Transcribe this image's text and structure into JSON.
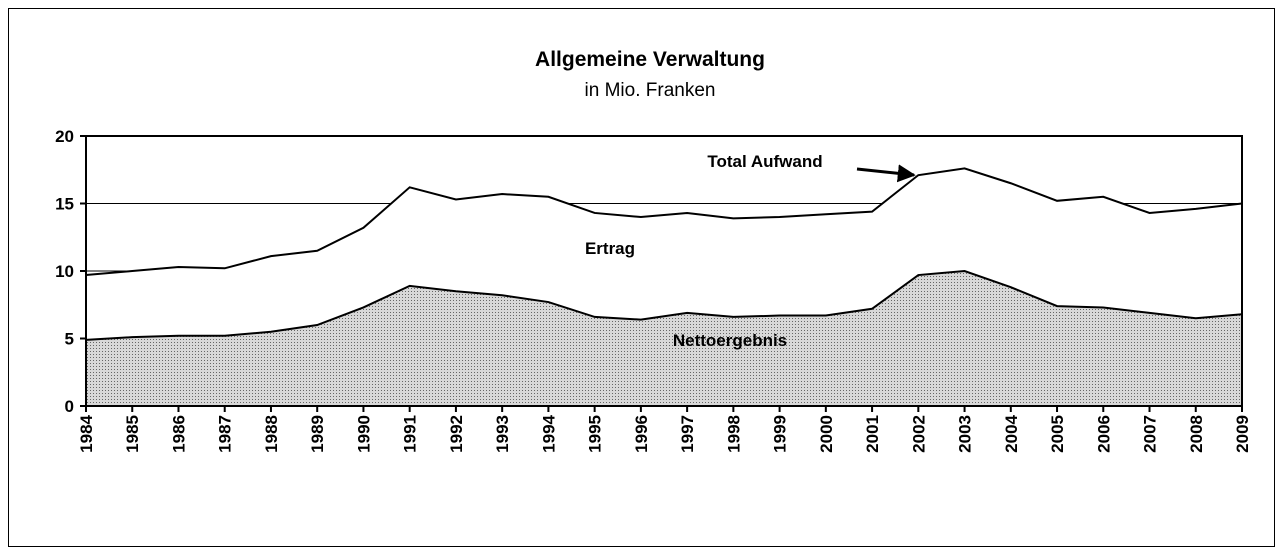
{
  "chart_data": {
    "type": "area",
    "title": "Allgemeine Verwaltung",
    "subtitle": "in Mio. Franken",
    "categories": [
      "1984",
      "1985",
      "1986",
      "1987",
      "1988",
      "1989",
      "1990",
      "1991",
      "1992",
      "1993",
      "1994",
      "1995",
      "1996",
      "1997",
      "1998",
      "1999",
      "2000",
      "2001",
      "2002",
      "2003",
      "2004",
      "2005",
      "2006",
      "2007",
      "2008",
      "2009"
    ],
    "series": [
      {
        "name": "Total Aufwand",
        "color": "#000000",
        "values": [
          9.7,
          10.0,
          10.3,
          10.2,
          11.1,
          11.5,
          13.2,
          16.2,
          15.3,
          15.7,
          15.5,
          14.3,
          14.0,
          14.3,
          13.9,
          14.0,
          14.2,
          14.4,
          17.1,
          17.6,
          16.5,
          15.2,
          15.5,
          14.3,
          14.6,
          15.0
        ]
      },
      {
        "name": "Nettoergebnis",
        "color": "#000000",
        "values": [
          4.9,
          5.1,
          5.2,
          5.2,
          5.5,
          6.0,
          7.3,
          8.9,
          8.5,
          8.2,
          7.7,
          6.6,
          6.4,
          6.9,
          6.6,
          6.7,
          6.7,
          7.2,
          9.7,
          10.0,
          8.8,
          7.4,
          7.3,
          6.9,
          6.5,
          6.8
        ]
      }
    ],
    "annotations": [
      "Ertrag"
    ],
    "ylim": [
      0,
      20
    ],
    "yticks": [
      0,
      5,
      10,
      15,
      20
    ],
    "grid": true
  }
}
